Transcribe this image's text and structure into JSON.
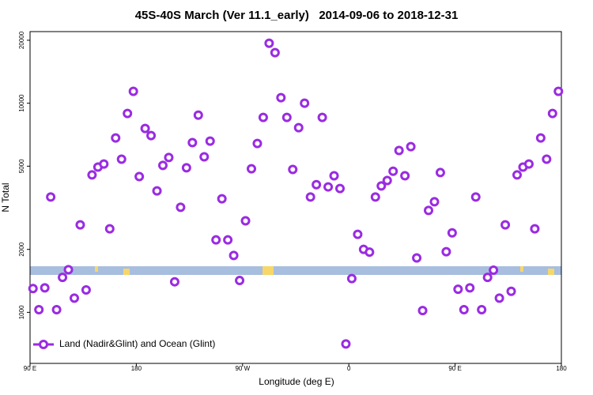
{
  "chart_data": {
    "type": "scatter",
    "title": "45S-40S March (Ver 11.1_early)   2014-09-06 to 2018-12-31",
    "x_label": "Longitude (deg E)",
    "y_label": "N Total",
    "log_y": true,
    "legend_loc": "lower left",
    "xlim": [
      90,
      540
    ],
    "xticks": [
      {
        "value": 90,
        "label": "90 E"
      },
      180,
      {
        "value": 270,
        "label": "90 W"
      },
      {
        "value": 360,
        "label": "0"
      },
      {
        "value": 450,
        "label": "90 E"
      },
      {
        "value": 540,
        "label": "180"
      }
    ],
    "ylim": [
      570,
      22000
    ],
    "yticks": [
      1000,
      2000,
      5000,
      10000,
      20000
    ],
    "x": [
      92.5,
      97.5,
      102.5,
      107.5,
      112.5,
      117.5,
      122.5,
      127.5,
      132.5,
      137.5,
      142.5,
      147.5,
      152.5,
      157.5,
      162.5,
      167.5,
      172.5,
      177.5,
      182.5,
      187.5,
      192.5,
      197.5,
      202.5,
      207.5,
      212.5,
      217.5,
      222.5,
      227.5,
      232.5,
      237.5,
      242.5,
      247.5,
      252.5,
      257.5,
      262.5,
      267.5,
      272.5,
      277.5,
      282.5,
      287.5,
      292.5,
      297.5,
      302.5,
      307.5,
      312.5,
      317.5,
      322.5,
      327.5,
      332.5,
      337.5,
      342.5,
      347.5,
      352.5,
      357.5,
      362.5,
      367.5,
      372.5,
      377.5,
      382.5,
      387.5,
      392.5,
      397.5,
      402.5,
      407.5,
      412.5,
      417.5,
      422.5,
      427.5,
      432.5,
      437.5,
      442.5,
      447.5,
      452.5,
      457.5,
      462.5,
      467.5,
      472.5,
      477.5,
      482.5,
      487.5,
      492.5,
      497.5,
      502.5,
      507.5,
      512.5,
      517.5,
      522.5,
      527.5,
      532.5,
      537.5
    ],
    "series": [
      {
        "name": "Land (Nadir&Glint) and Ocean (Glint)",
        "color": "#9a2be2",
        "values": [
          1300,
          1030,
          1310,
          3560,
          1030,
          1470,
          1600,
          1170,
          2620,
          1280,
          4540,
          4950,
          5120,
          2510,
          6820,
          5400,
          8930,
          11400,
          4460,
          7570,
          7000,
          3810,
          5040,
          5500,
          1400,
          3180,
          4910,
          6480,
          8770,
          5540,
          6590,
          2220,
          3490,
          2220,
          1870,
          1420,
          2740,
          4860,
          6420,
          8550,
          19360,
          17450,
          10630,
          8550,
          4820,
          7640,
          10000,
          3560,
          4080,
          8550,
          3980,
          4500,
          3910,
          706,
          1450,
          2360,
          2000,
          1940,
          3560,
          4020,
          4270,
          4730,
          5940,
          4500,
          6200,
          1820,
          1020,
          3070,
          3380,
          4660,
          1950,
          2400,
          1290,
          1030,
          1310,
          3560,
          1030,
          1470,
          1590,
          1170,
          2620,
          1260,
          4540,
          4950,
          5120,
          2510,
          6820,
          5400,
          8930,
          11400
        ]
      }
    ]
  }
}
